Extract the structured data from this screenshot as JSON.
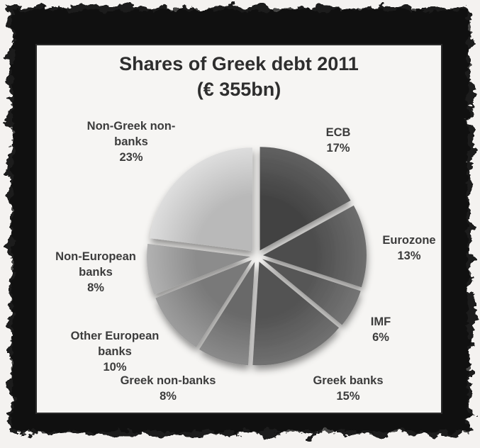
{
  "title": {
    "line1": "Shares of Greek debt 2011",
    "line2": "(€ 355bn)"
  },
  "frame": {
    "style": "grunge-black-border",
    "frame_color": "#1b1b1b",
    "card_background": "#f6f5f3",
    "card_border_color": "#2b2b2b",
    "text_color": "#3c3c3c",
    "title_color": "#2e2e2e"
  },
  "chart_data": {
    "type": "pie",
    "title": "Shares of Greek debt 2011 (€ 355bn)",
    "subtitle": "(€ 355bn)",
    "total": "€ 355bn",
    "unit": "%",
    "start_angle_deg": 0,
    "direction": "clockwise",
    "style": "exploded grayscale 3D-bevel pie, labels around pie, no legend box",
    "slices": [
      {
        "label": "ECB",
        "label_lines": [
          "ECB"
        ],
        "value": 17,
        "color": "#434343",
        "highlight": "#616161"
      },
      {
        "label": "Eurozone",
        "label_lines": [
          "Eurozone"
        ],
        "value": 13,
        "color": "#4e4e4e",
        "highlight": "#6e6e6e"
      },
      {
        "label": "IMF",
        "label_lines": [
          "IMF"
        ],
        "value": 6,
        "color": "#575757",
        "highlight": "#757575"
      },
      {
        "label": "Greek banks",
        "label_lines": [
          "Greek banks"
        ],
        "value": 15,
        "color": "#525252",
        "highlight": "#717171"
      },
      {
        "label": "Greek non-banks",
        "label_lines": [
          "Greek non-banks"
        ],
        "value": 8,
        "color": "#696969",
        "highlight": "#8b8b8b"
      },
      {
        "label": "Other European banks",
        "label_lines": [
          "Other European",
          "banks"
        ],
        "value": 10,
        "color": "#797979",
        "highlight": "#9d9d9d"
      },
      {
        "label": "Non-European banks",
        "label_lines": [
          "Non-European",
          "banks"
        ],
        "value": 8,
        "color": "#8c8c8c",
        "highlight": "#b2b2b2"
      },
      {
        "label": "Non-Greek non-banks",
        "label_lines": [
          "Non-Greek non-",
          "banks"
        ],
        "value": 23,
        "color": "#b9b9b9",
        "highlight": "#dedede"
      }
    ]
  }
}
